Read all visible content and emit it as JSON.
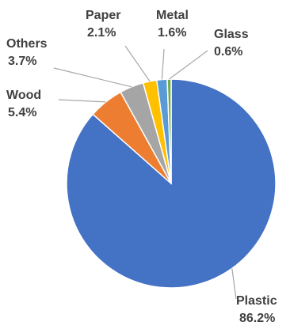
{
  "chart_data": {
    "type": "pie",
    "start": "12 o'clock",
    "direction": "clockwise",
    "slices": [
      {
        "label": "Plastic",
        "value": 86.2,
        "value_label": "86.2%",
        "color": "#4472C4"
      },
      {
        "label": "Wood",
        "value": 5.4,
        "value_label": "5.4%",
        "color": "#ED7D31"
      },
      {
        "label": "Others",
        "value": 3.7,
        "value_label": "3.7%",
        "color": "#A5A5A5"
      },
      {
        "label": "Paper",
        "value": 2.1,
        "value_label": "2.1%",
        "color": "#FFC000"
      },
      {
        "label": "Metal",
        "value": 1.6,
        "value_label": "1.6%",
        "color": "#5B9BD5"
      },
      {
        "label": "Glass",
        "value": 0.6,
        "value_label": "0.6%",
        "color": "#70AD47"
      }
    ],
    "leader_line_color": "#A6A6A6",
    "label_color": "#404040"
  }
}
